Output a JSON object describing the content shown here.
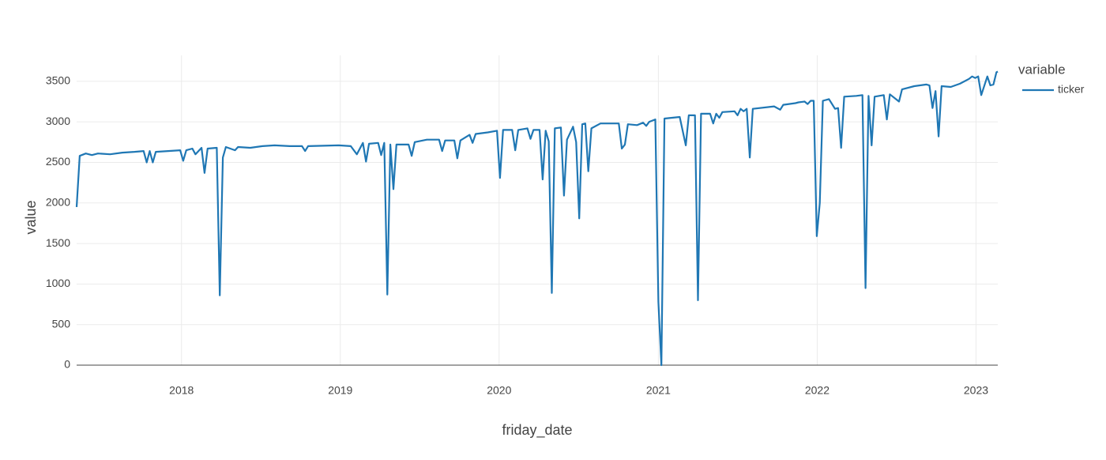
{
  "chart_data": {
    "type": "line",
    "x_label": "friday_date",
    "y_label": "value",
    "legend_title": "variable",
    "xlim": [
      "2017-05-05",
      "2023-02-20"
    ],
    "xticks": [
      {
        "value": "2018-01-01",
        "label": "2018"
      },
      {
        "value": "2019-01-01",
        "label": "2019"
      },
      {
        "value": "2020-01-01",
        "label": "2020"
      },
      {
        "value": "2021-01-01",
        "label": "2021"
      },
      {
        "value": "2022-01-01",
        "label": "2022"
      },
      {
        "value": "2023-01-01",
        "label": "2023"
      }
    ],
    "ylim": [
      0,
      3820
    ],
    "yticks": [
      0,
      500,
      1000,
      1500,
      2000,
      2500,
      3000,
      3500
    ],
    "grid": true,
    "x": [
      "2017-05-05",
      "2017-05-12",
      "2017-05-26",
      "2017-06-09",
      "2017-06-23",
      "2017-07-21",
      "2017-08-18",
      "2017-09-15",
      "2017-10-06",
      "2017-10-13",
      "2017-10-20",
      "2017-10-27",
      "2017-11-03",
      "2017-12-01",
      "2017-12-29",
      "2018-01-05",
      "2018-01-12",
      "2018-01-26",
      "2018-02-02",
      "2018-02-16",
      "2018-02-23",
      "2018-03-02",
      "2018-03-23",
      "2018-03-30",
      "2018-04-06",
      "2018-04-13",
      "2018-05-04",
      "2018-05-11",
      "2018-06-08",
      "2018-07-06",
      "2018-08-03",
      "2018-09-07",
      "2018-10-05",
      "2018-10-12",
      "2018-10-19",
      "2018-12-28",
      "2019-01-25",
      "2019-02-08",
      "2019-02-22",
      "2019-03-01",
      "2019-03-08",
      "2019-03-29",
      "2019-04-05",
      "2019-04-12",
      "2019-04-19",
      "2019-04-26",
      "2019-05-03",
      "2019-05-10",
      "2019-06-07",
      "2019-06-14",
      "2019-06-21",
      "2019-07-19",
      "2019-08-16",
      "2019-08-23",
      "2019-08-30",
      "2019-09-20",
      "2019-09-27",
      "2019-10-04",
      "2019-10-25",
      "2019-11-01",
      "2019-11-08",
      "2019-12-06",
      "2019-12-27",
      "2020-01-03",
      "2020-01-10",
      "2020-01-31",
      "2020-02-07",
      "2020-02-14",
      "2020-03-06",
      "2020-03-13",
      "2020-03-20",
      "2020-04-03",
      "2020-04-10",
      "2020-04-17",
      "2020-04-24",
      "2020-05-01",
      "2020-05-08",
      "2020-05-22",
      "2020-05-29",
      "2020-06-05",
      "2020-06-19",
      "2020-06-26",
      "2020-07-03",
      "2020-07-10",
      "2020-07-17",
      "2020-07-24",
      "2020-07-31",
      "2020-08-21",
      "2020-10-02",
      "2020-10-09",
      "2020-10-16",
      "2020-10-23",
      "2020-11-13",
      "2020-11-27",
      "2020-12-04",
      "2020-12-11",
      "2020-12-25",
      "2021-01-01",
      "2021-01-08",
      "2021-01-15",
      "2021-02-19",
      "2021-03-05",
      "2021-03-12",
      "2021-03-26",
      "2021-04-02",
      "2021-04-09",
      "2021-04-30",
      "2021-05-07",
      "2021-05-14",
      "2021-05-21",
      "2021-05-28",
      "2021-06-25",
      "2021-07-02",
      "2021-07-09",
      "2021-07-16",
      "2021-07-23",
      "2021-07-30",
      "2021-08-06",
      "2021-09-24",
      "2021-10-08",
      "2021-10-15",
      "2021-11-12",
      "2021-11-19",
      "2021-12-03",
      "2021-12-10",
      "2021-12-17",
      "2021-12-24",
      "2021-12-31",
      "2022-01-07",
      "2022-01-14",
      "2022-01-28",
      "2022-02-11",
      "2022-02-18",
      "2022-02-25",
      "2022-03-04",
      "2022-04-01",
      "2022-04-15",
      "2022-04-22",
      "2022-04-29",
      "2022-05-06",
      "2022-05-13",
      "2022-06-03",
      "2022-06-10",
      "2022-06-17",
      "2022-07-08",
      "2022-07-15",
      "2022-08-12",
      "2022-09-09",
      "2022-09-16",
      "2022-09-23",
      "2022-09-30",
      "2022-10-07",
      "2022-10-14",
      "2022-11-04",
      "2022-11-25",
      "2022-12-16",
      "2022-12-23",
      "2022-12-30",
      "2023-01-06",
      "2023-01-13",
      "2023-01-27",
      "2023-02-03",
      "2023-02-10",
      "2023-02-17",
      "2023-02-20"
    ],
    "series": [
      {
        "name": "ticker",
        "color": "#1f77b4",
        "values": [
          1950,
          2580,
          2610,
          2590,
          2610,
          2600,
          2620,
          2630,
          2640,
          2500,
          2640,
          2500,
          2630,
          2640,
          2650,
          2520,
          2650,
          2670,
          2600,
          2680,
          2370,
          2670,
          2680,
          860,
          2560,
          2690,
          2650,
          2690,
          2680,
          2700,
          2710,
          2700,
          2700,
          2640,
          2700,
          2710,
          2700,
          2600,
          2740,
          2510,
          2730,
          2740,
          2590,
          2740,
          870,
          2720,
          2170,
          2720,
          2720,
          2580,
          2750,
          2780,
          2780,
          2640,
          2770,
          2770,
          2550,
          2770,
          2840,
          2740,
          2850,
          2870,
          2890,
          2310,
          2900,
          2900,
          2650,
          2900,
          2920,
          2790,
          2900,
          2900,
          2290,
          2890,
          2760,
          890,
          2920,
          2930,
          2090,
          2780,
          2940,
          2750,
          1810,
          2970,
          2980,
          2390,
          2920,
          2980,
          2980,
          2670,
          2720,
          2970,
          2960,
          2990,
          2950,
          3000,
          3030,
          780,
          0,
          3040,
          3060,
          2710,
          3080,
          3080,
          800,
          3100,
          3100,
          2980,
          3100,
          3050,
          3120,
          3130,
          3080,
          3160,
          3130,
          3160,
          2560,
          3160,
          3190,
          3150,
          3210,
          3230,
          3240,
          3250,
          3220,
          3260,
          3260,
          1590,
          2000,
          3260,
          3280,
          3160,
          3170,
          2680,
          3310,
          3320,
          3330,
          950,
          3320,
          2710,
          3310,
          3330,
          3030,
          3340,
          3250,
          3400,
          3440,
          3460,
          3450,
          3170,
          3380,
          2820,
          3440,
          3430,
          3470,
          3530,
          3560,
          3540,
          3560,
          3330,
          3560,
          3450,
          3460,
          3610,
          3620
        ]
      }
    ]
  }
}
